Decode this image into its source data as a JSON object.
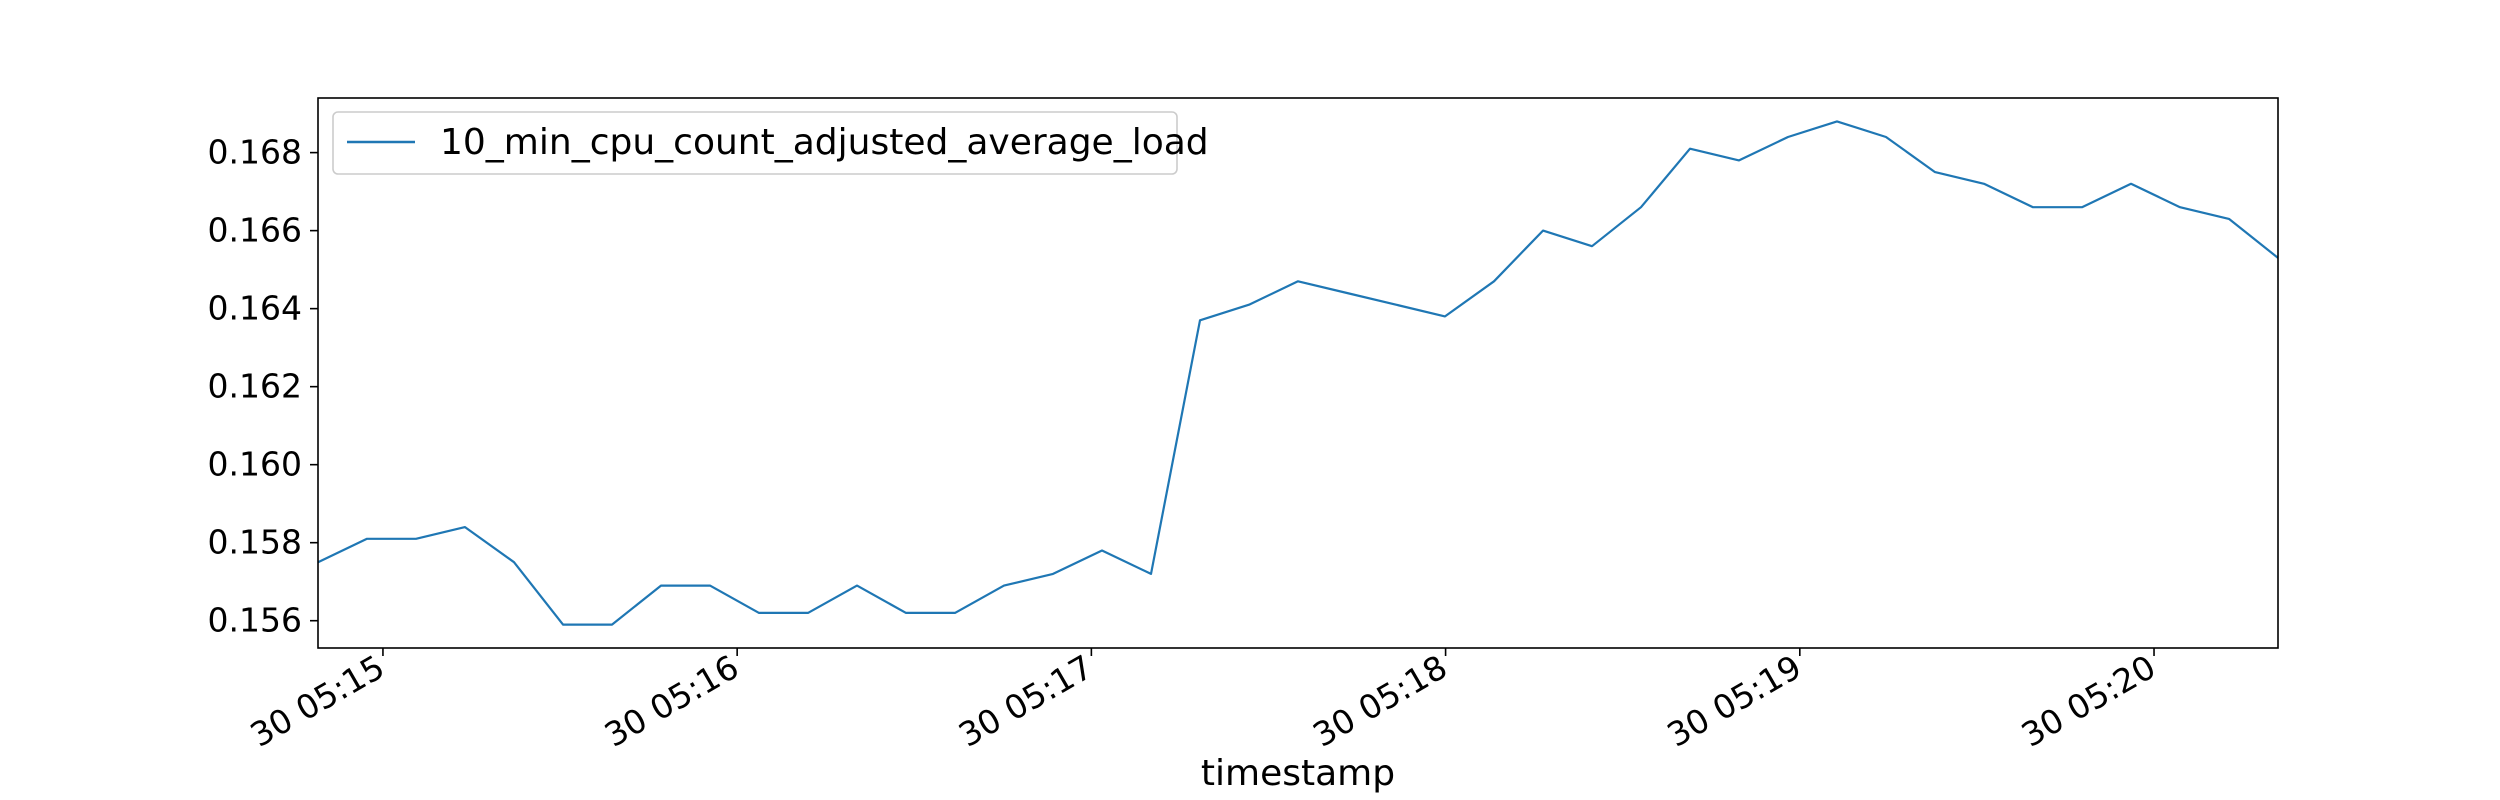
{
  "chart_data": {
    "type": "line",
    "title": "",
    "xlabel": "timestamp",
    "ylabel": "",
    "grid": false,
    "legend_position": "top-left",
    "x_tick_labels": [
      "30 05:15",
      "30 05:16",
      "30 05:17",
      "30 05:18",
      "30 05:19",
      "30 05:20"
    ],
    "x_tick_values": [
      0,
      60,
      120,
      180,
      240,
      300
    ],
    "xlim": [
      -11,
      321
    ],
    "y_tick_labels": [
      "0.156",
      "0.158",
      "0.160",
      "0.162",
      "0.164",
      "0.166",
      "0.168"
    ],
    "y_tick_values": [
      0.156,
      0.158,
      0.16,
      0.162,
      0.164,
      0.166,
      0.168
    ],
    "ylim": [
      0.1553,
      0.1694
    ],
    "series": [
      {
        "name": "10_min_cpu_count_adjusted_average_load",
        "color": "#1f77b4",
        "x": [
          -11,
          -2.7,
          5.6,
          13.9,
          22.2,
          30.5,
          38.8,
          47.1,
          55.4,
          63.7,
          72,
          80.3,
          88.6,
          96.9,
          105.2,
          113.5,
          121.8,
          130.1,
          138.4,
          146.7,
          155,
          163.3,
          171.6,
          179.9,
          188.2,
          196.5,
          204.8,
          213.1,
          221.4,
          229.7,
          238,
          246.3,
          254.6,
          262.9,
          271.2,
          279.5,
          287.8,
          296.1,
          304.4,
          312.7,
          321
        ],
        "y": [
          0.1575,
          0.1581,
          0.1581,
          0.1584,
          0.1575,
          0.1559,
          0.1559,
          0.1569,
          0.1569,
          0.1562,
          0.1562,
          0.1569,
          0.1562,
          0.1562,
          0.1569,
          0.1572,
          0.1578,
          0.1572,
          0.1637,
          0.1641,
          0.1647,
          0.1644,
          0.1641,
          0.1638,
          0.1647,
          0.166,
          0.1656,
          0.1666,
          0.1681,
          0.1678,
          0.1684,
          0.1688,
          0.1684,
          0.1675,
          0.1672,
          0.1666,
          0.1666,
          0.1672,
          0.1666,
          0.1663,
          0.1653
        ]
      }
    ]
  }
}
